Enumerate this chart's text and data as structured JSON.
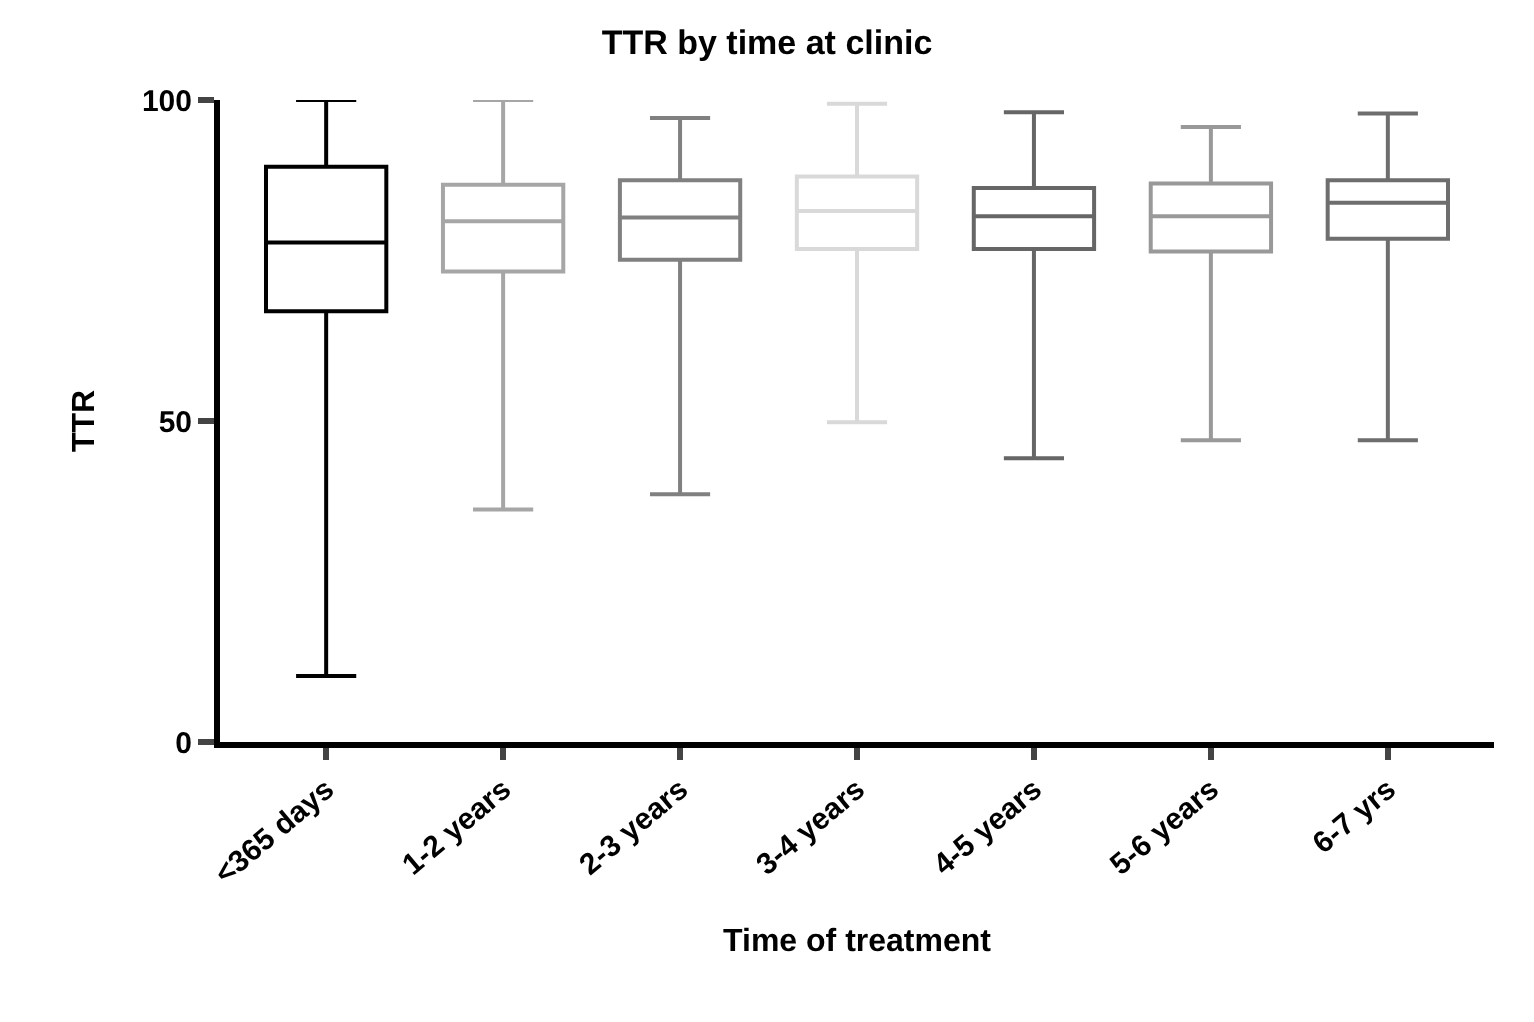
{
  "chart_data": {
    "type": "box",
    "title": "TTR by time at clinic",
    "xlabel": "Time of treatment",
    "ylabel": "TTR",
    "categories": [
      "<365 days",
      "1-2 years",
      "2-3 years",
      "3-4 years",
      "4-5 years",
      "5-6 years",
      "6-7 yrs"
    ],
    "boxes": [
      {
        "low": 10.3,
        "q1": 67.1,
        "median": 77.8,
        "q3": 89.6,
        "high": 100
      },
      {
        "low": 36.2,
        "q1": 73.3,
        "median": 81.1,
        "q3": 86.8,
        "high": 100
      },
      {
        "low": 38.6,
        "q1": 75.1,
        "median": 81.7,
        "q3": 87.5,
        "high": 97.2
      },
      {
        "low": 49.8,
        "q1": 76.8,
        "median": 82.7,
        "q3": 88.1,
        "high": 99.4
      },
      {
        "low": 44.2,
        "q1": 76.8,
        "median": 81.9,
        "q3": 86.3,
        "high": 98.1
      },
      {
        "low": 47.0,
        "q1": 76.4,
        "median": 81.9,
        "q3": 87.0,
        "high": 95.8
      },
      {
        "low": 47.0,
        "q1": 78.4,
        "median": 84.0,
        "q3": 87.5,
        "high": 97.9
      }
    ],
    "colors": [
      "#000000",
      "#a6a6a6",
      "#808080",
      "#d9d9d9",
      "#666666",
      "#999999",
      "#6e6e6e"
    ],
    "ylim": [
      0,
      100
    ],
    "yticks": [
      0,
      50,
      100
    ],
    "grid": false,
    "legend": false
  }
}
